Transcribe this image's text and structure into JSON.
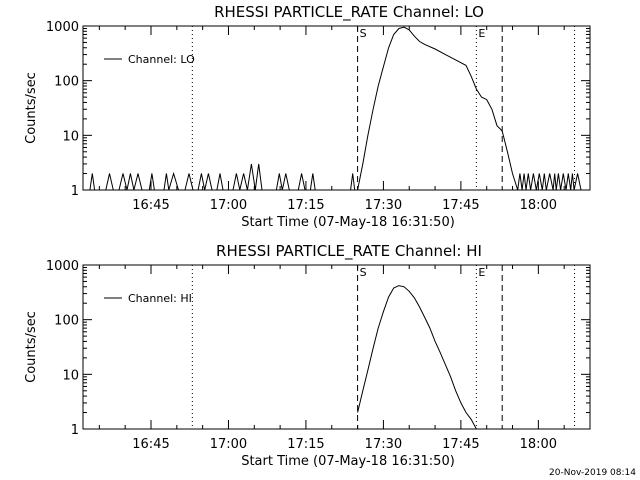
{
  "footer_timestamp": "20-Nov-2019 08:14",
  "chart_data": [
    {
      "type": "line",
      "title": "RHESSI PARTICLE_RATE Channel: LO",
      "xlabel": "Start Time (07-May-18 16:31:50)",
      "ylabel": "Counts/sec",
      "xlim": [
        "16:31:50",
        "18:10:00"
      ],
      "ylim": [
        1,
        1000
      ],
      "yscale": "log",
      "x_ticks": [
        "16:45",
        "17:00",
        "17:15",
        "17:30",
        "17:45",
        "18:00"
      ],
      "y_ticks": [
        "1",
        "10",
        "100",
        "1000"
      ],
      "legend": "top-left",
      "series": [
        {
          "name": "Channel: LO",
          "x": [
            "17:25",
            "17:26",
            "17:27",
            "17:28",
            "17:29",
            "17:30",
            "17:31",
            "17:32",
            "17:33",
            "17:34",
            "17:35",
            "17:36",
            "17:37",
            "17:38",
            "17:40",
            "17:42",
            "17:44",
            "17:46",
            "17:47",
            "17:48",
            "17:49",
            "17:50",
            "17:51",
            "17:52",
            "17:53",
            "17:54",
            "17:55",
            "17:56"
          ],
          "y": [
            1,
            3,
            10,
            30,
            80,
            180,
            400,
            700,
            900,
            950,
            850,
            650,
            520,
            460,
            380,
            300,
            240,
            190,
            120,
            70,
            50,
            45,
            30,
            15,
            12,
            5,
            2,
            1
          ]
        }
      ],
      "markers": [
        {
          "label": "S",
          "time": "17:25",
          "style": "dashed"
        },
        {
          "label": "E",
          "time": "17:48",
          "style": "dotted"
        },
        {
          "label": "",
          "time": "16:53",
          "style": "dotted"
        },
        {
          "label": "",
          "time": "17:53",
          "style": "dashed"
        },
        {
          "label": "",
          "time": "18:07",
          "style": "dotted"
        }
      ]
    },
    {
      "type": "line",
      "title": "RHESSI PARTICLE_RATE Channel: HI",
      "xlabel": "Start Time (07-May-18 16:31:50)",
      "ylabel": "Counts/sec",
      "xlim": [
        "16:31:50",
        "18:10:00"
      ],
      "ylim": [
        1,
        1000
      ],
      "yscale": "log",
      "x_ticks": [
        "16:45",
        "17:00",
        "17:15",
        "17:30",
        "17:45",
        "18:00"
      ],
      "y_ticks": [
        "1",
        "10",
        "100",
        "1000"
      ],
      "legend": "top-left",
      "series": [
        {
          "name": "Channel: HI",
          "x": [
            "17:25",
            "17:26",
            "17:27",
            "17:28",
            "17:29",
            "17:30",
            "17:31",
            "17:32",
            "17:33",
            "17:34",
            "17:35",
            "17:36",
            "17:37",
            "17:38",
            "17:39",
            "17:40",
            "17:41",
            "17:42",
            "17:43",
            "17:44",
            "17:45",
            "17:46",
            "17:47",
            "17:48"
          ],
          "y": [
            2,
            5,
            12,
            30,
            70,
            140,
            260,
            380,
            420,
            400,
            330,
            250,
            170,
            110,
            70,
            40,
            25,
            15,
            9,
            5,
            3,
            2,
            1.5,
            1
          ]
        }
      ],
      "markers": [
        {
          "label": "S",
          "time": "17:25",
          "style": "dashed"
        },
        {
          "label": "E",
          "time": "17:48",
          "style": "dotted"
        },
        {
          "label": "",
          "time": "16:53",
          "style": "dotted"
        },
        {
          "label": "",
          "time": "17:53",
          "style": "dashed"
        },
        {
          "label": "",
          "time": "18:07",
          "style": "dotted"
        }
      ]
    }
  ]
}
